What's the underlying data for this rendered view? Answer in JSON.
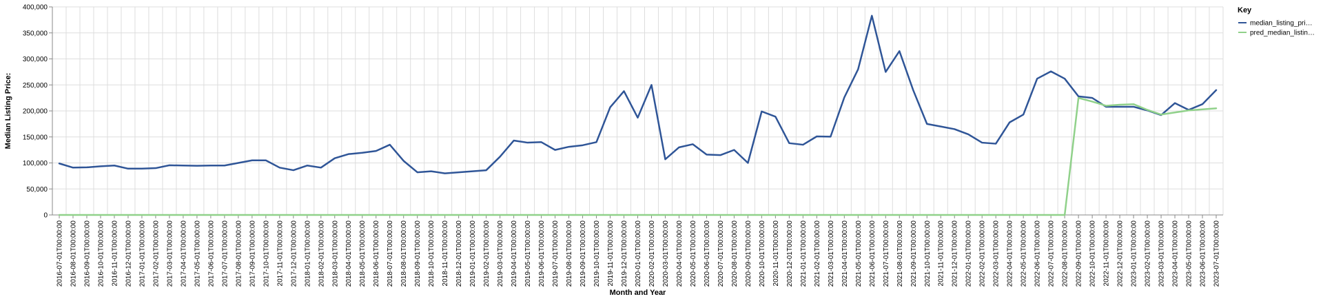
{
  "chart_data": {
    "type": "line",
    "xlabel": "Month and Year",
    "ylabel": "Median Listing Price:",
    "ylim": [
      0,
      400000
    ],
    "yticks": [
      "0",
      "50,000",
      "100,000",
      "150,000",
      "200,000",
      "250,000",
      "300,000",
      "350,000",
      "400,000"
    ],
    "grid": true,
    "legend": {
      "title": "Key",
      "placement": "top-right",
      "entries": [
        "median_listing_pri…",
        "pred_median_listin…"
      ]
    },
    "x": [
      "2016-07-01T00:00:00",
      "2016-08-01T00:00:00",
      "2016-09-01T00:00:00",
      "2016-10-01T00:00:00",
      "2016-11-01T00:00:00",
      "2016-12-01T00:00:00",
      "2017-01-01T00:00:00",
      "2017-02-01T00:00:00",
      "2017-03-01T00:00:00",
      "2017-04-01T00:00:00",
      "2017-05-01T00:00:00",
      "2017-06-01T00:00:00",
      "2017-07-01T00:00:00",
      "2017-08-01T00:00:00",
      "2017-09-01T00:00:00",
      "2017-10-01T00:00:00",
      "2017-11-01T00:00:00",
      "2017-12-01T00:00:00",
      "2018-01-01T00:00:00",
      "2018-02-01T00:00:00",
      "2018-03-01T00:00:00",
      "2018-04-01T00:00:00",
      "2018-05-01T00:00:00",
      "2018-06-01T00:00:00",
      "2018-07-01T00:00:00",
      "2018-08-01T00:00:00",
      "2018-09-01T00:00:00",
      "2018-10-01T00:00:00",
      "2018-11-01T00:00:00",
      "2018-12-01T00:00:00",
      "2019-01-01T00:00:00",
      "2019-02-01T00:00:00",
      "2019-03-01T00:00:00",
      "2019-04-01T00:00:00",
      "2019-05-01T00:00:00",
      "2019-06-01T00:00:00",
      "2019-07-01T00:00:00",
      "2019-08-01T00:00:00",
      "2019-09-01T00:00:00",
      "2019-10-01T00:00:00",
      "2019-11-01T00:00:00",
      "2019-12-01T00:00:00",
      "2020-01-01T00:00:00",
      "2020-02-01T00:00:00",
      "2020-03-01T00:00:00",
      "2020-04-01T00:00:00",
      "2020-05-01T00:00:00",
      "2020-06-01T00:00:00",
      "2020-07-01T00:00:00",
      "2020-08-01T00:00:00",
      "2020-09-01T00:00:00",
      "2020-10-01T00:00:00",
      "2020-11-01T00:00:00",
      "2020-12-01T00:00:00",
      "2021-01-01T00:00:00",
      "2021-02-01T00:00:00",
      "2021-03-01T00:00:00",
      "2021-04-01T00:00:00",
      "2021-05-01T00:00:00",
      "2021-06-01T00:00:00",
      "2021-07-01T00:00:00",
      "2021-08-01T00:00:00",
      "2021-09-01T00:00:00",
      "2021-10-01T00:00:00",
      "2021-11-01T00:00:00",
      "2021-12-01T00:00:00",
      "2022-01-01T00:00:00",
      "2022-02-01T00:00:00",
      "2022-03-01T00:00:00",
      "2022-04-01T00:00:00",
      "2022-05-01T00:00:00",
      "2022-06-01T00:00:00",
      "2022-07-01T00:00:00",
      "2022-08-01T00:00:00",
      "2022-09-01T00:00:00",
      "2022-10-01T00:00:00",
      "2022-11-01T00:00:00",
      "2022-12-01T00:00:00",
      "2023-01-01T00:00:00",
      "2023-02-01T00:00:00",
      "2023-03-01T00:00:00",
      "2023-04-01T00:00:00",
      "2023-05-01T00:00:00",
      "2023-06-01T00:00:00",
      "2023-07-01T00:00:00"
    ],
    "series": [
      {
        "name": "median_listing_pri…",
        "color": "#2f5597",
        "values": [
          99000,
          91000,
          91500,
          93500,
          95000,
          89000,
          89000,
          90000,
          95500,
          95000,
          94500,
          95000,
          95000,
          100000,
          105000,
          105000,
          91000,
          86000,
          95000,
          91000,
          109000,
          117000,
          119500,
          123000,
          135000,
          104000,
          82000,
          84000,
          80000,
          82000,
          84000,
          86000,
          112000,
          143000,
          139000,
          140000,
          125000,
          131000,
          134000,
          140000,
          207000,
          238000,
          187000,
          250000,
          107000,
          130000,
          136000,
          116000,
          115000,
          125000,
          100000,
          199000,
          189000,
          138000,
          135000,
          151000,
          150500,
          226000,
          280000,
          383000,
          275000,
          315000,
          240000,
          175000,
          170000,
          165000,
          155000,
          139000,
          137000,
          178000,
          193000,
          262000,
          276000,
          262000,
          228000,
          225000,
          208000,
          208000,
          208000,
          201000,
          192000,
          215000,
          202000,
          213000,
          240000
        ]
      },
      {
        "name": "pred_median_listin…",
        "color": "#90d18a",
        "values": [
          0,
          0,
          0,
          0,
          0,
          0,
          0,
          0,
          0,
          0,
          0,
          0,
          0,
          0,
          0,
          0,
          0,
          0,
          0,
          0,
          0,
          0,
          0,
          0,
          0,
          0,
          0,
          0,
          0,
          0,
          0,
          0,
          0,
          0,
          0,
          0,
          0,
          0,
          0,
          0,
          0,
          0,
          0,
          0,
          0,
          0,
          0,
          0,
          0,
          0,
          0,
          0,
          0,
          0,
          0,
          0,
          0,
          0,
          0,
          0,
          0,
          0,
          0,
          0,
          0,
          0,
          0,
          0,
          0,
          0,
          0,
          0,
          0,
          0,
          225000,
          218000,
          210000,
          212000,
          213000,
          202000,
          193000,
          197000,
          201000,
          203000,
          205000
        ]
      }
    ]
  }
}
